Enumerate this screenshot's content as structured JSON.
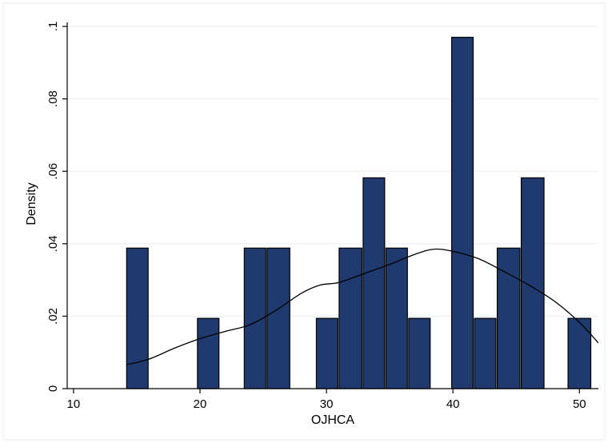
{
  "chart_data": {
    "type": "bar",
    "title": "",
    "xlabel": "OJHCA",
    "ylabel": "Density",
    "xlim": [
      9.5,
      51.5
    ],
    "ylim": [
      0,
      0.102
    ],
    "x_ticks": [
      10,
      20,
      30,
      40,
      50
    ],
    "x_tick_labels": [
      "10",
      "20",
      "30",
      "40",
      "50"
    ],
    "y_ticks": [
      0,
      0.02,
      0.04,
      0.06,
      0.08,
      0.1
    ],
    "y_tick_labels": [
      "0",
      ".02",
      ".04",
      ".06",
      ".08",
      ".1"
    ],
    "grid": true,
    "bar_color": "#1f3a6e",
    "bar_edge_color": "#000000",
    "bins": [
      {
        "x0": 14.2,
        "x1": 15.9,
        "density": 0.0388
      },
      {
        "x0": 19.8,
        "x1": 21.5,
        "density": 0.0194
      },
      {
        "x0": 23.5,
        "x1": 25.2,
        "density": 0.0388
      },
      {
        "x0": 25.3,
        "x1": 27.1,
        "density": 0.0388
      },
      {
        "x0": 29.2,
        "x1": 30.9,
        "density": 0.0194
      },
      {
        "x0": 31.0,
        "x1": 32.8,
        "density": 0.0388
      },
      {
        "x0": 32.9,
        "x1": 34.6,
        "density": 0.0582
      },
      {
        "x0": 34.7,
        "x1": 36.4,
        "density": 0.0388
      },
      {
        "x0": 36.5,
        "x1": 38.2,
        "density": 0.0194
      },
      {
        "x0": 39.9,
        "x1": 41.6,
        "density": 0.097
      },
      {
        "x0": 41.7,
        "x1": 43.4,
        "density": 0.0194
      },
      {
        "x0": 43.5,
        "x1": 45.3,
        "density": 0.0388
      },
      {
        "x0": 45.4,
        "x1": 47.2,
        "density": 0.0582
      },
      {
        "x0": 49.1,
        "x1": 50.9,
        "density": 0.0194
      }
    ],
    "density_curve": {
      "x": [
        14.2,
        16,
        18,
        20,
        22,
        24,
        26,
        28,
        29.5,
        31,
        33,
        35,
        37,
        38.5,
        40,
        42,
        44,
        46,
        48,
        50,
        51.5
      ],
      "y": [
        0.0066,
        0.0082,
        0.0112,
        0.0138,
        0.0158,
        0.0177,
        0.0216,
        0.0263,
        0.0286,
        0.0293,
        0.0318,
        0.0343,
        0.0371,
        0.0385,
        0.0379,
        0.0359,
        0.0324,
        0.0286,
        0.0242,
        0.0183,
        0.0126
      ]
    }
  }
}
